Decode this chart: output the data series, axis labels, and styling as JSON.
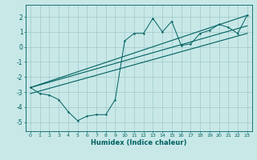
{
  "xlabel": "Humidex (Indice chaleur)",
  "bg_color": "#c8e8e8",
  "grid_color": "#a0c8c8",
  "line_color": "#006060",
  "xlim": [
    -0.5,
    23.5
  ],
  "ylim": [
    -5.6,
    2.8
  ],
  "xticks": [
    0,
    1,
    2,
    3,
    4,
    5,
    6,
    7,
    8,
    9,
    10,
    11,
    12,
    13,
    14,
    15,
    16,
    17,
    18,
    19,
    20,
    21,
    22,
    23
  ],
  "yticks": [
    -5,
    -4,
    -3,
    -2,
    -1,
    0,
    1,
    2
  ],
  "x_main": [
    0,
    1,
    2,
    3,
    4,
    5,
    6,
    7,
    8,
    9,
    10,
    11,
    12,
    13,
    14,
    15,
    16,
    17,
    18,
    19,
    20,
    21,
    22,
    23
  ],
  "y_scatter": [
    -2.7,
    -3.1,
    -3.2,
    -3.5,
    -4.3,
    -4.9,
    -4.6,
    -4.5,
    -4.5,
    -3.5,
    0.4,
    0.9,
    0.9,
    1.9,
    1.0,
    1.7,
    0.1,
    0.2,
    0.9,
    1.1,
    1.5,
    1.3,
    0.9,
    2.1
  ],
  "y_line2_x": [
    0,
    23
  ],
  "y_line2_y": [
    -2.7,
    2.1
  ],
  "y_line3_x": [
    0,
    23
  ],
  "y_line3_y": [
    -2.7,
    1.4
  ],
  "y_line4_x": [
    0,
    23
  ],
  "y_line4_y": [
    -3.1,
    0.9
  ]
}
